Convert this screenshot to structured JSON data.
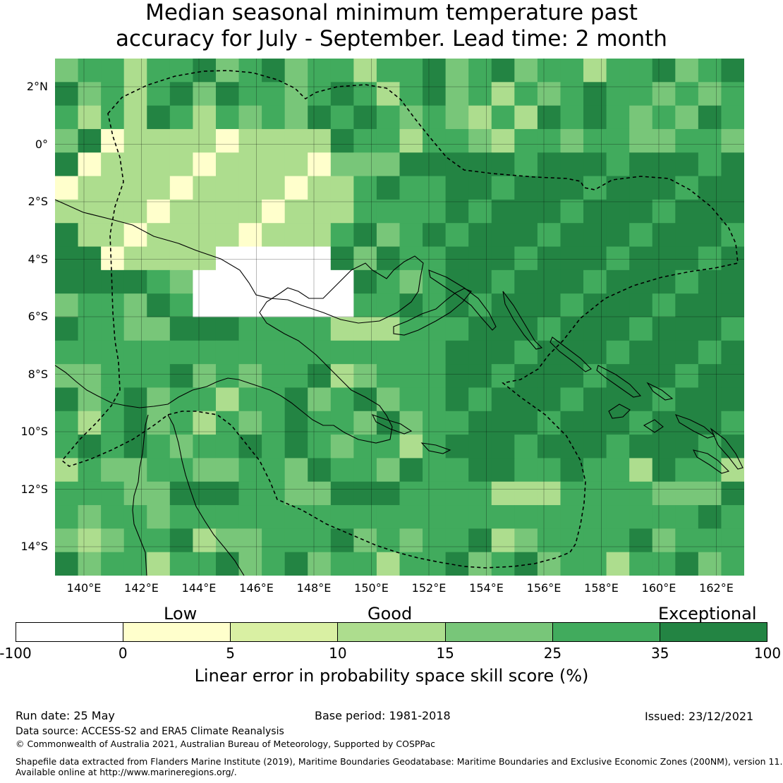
{
  "title": {
    "line1": "Median seasonal minimum temperature past",
    "line2": "accuracy for July - September. Lead time: 2 month"
  },
  "map": {
    "lat_ticks": [
      "2°N",
      "0°",
      "2°S",
      "4°S",
      "6°S",
      "8°S",
      "10°S",
      "12°S",
      "14°S"
    ],
    "lon_ticks": [
      "140°E",
      "142°E",
      "144°E",
      "146°E",
      "148°E",
      "150°E",
      "152°E",
      "154°E",
      "156°E",
      "158°E",
      "160°E",
      "162°E"
    ]
  },
  "legend": {
    "categories": [
      "Low",
      "Good",
      "Exceptional"
    ],
    "boundaries": [
      "-100",
      "0",
      "5",
      "10",
      "15",
      "25",
      "35",
      "100"
    ],
    "colors": [
      "#ffffff",
      "#ffffcc",
      "#d9f0a3",
      "#addd8e",
      "#78c679",
      "#41ab5d",
      "#238443"
    ],
    "label": "Linear error in probability space skill score (%)"
  },
  "footer": {
    "run_date": "Run date: 25 May",
    "base_period": "Base period: 1981-2018",
    "issued": "Issued: 23/12/2021",
    "data_source": "Data source: ACCESS-S2 and ERA5 Climate Reanalysis",
    "copyright": "© Commonwealth of Australia 2021, Australian Bureau of Meteorology, Supported by COSPPac",
    "shapefile_line1": "Shapefile data extracted from Flanders Marine Institute (2019), Maritime Boundaries Geodatabase: Maritime Boundaries and Exclusive Economic Zones (200NM), version 11.",
    "shapefile_line2": "Available online at http://www.marineregions.org/."
  }
}
